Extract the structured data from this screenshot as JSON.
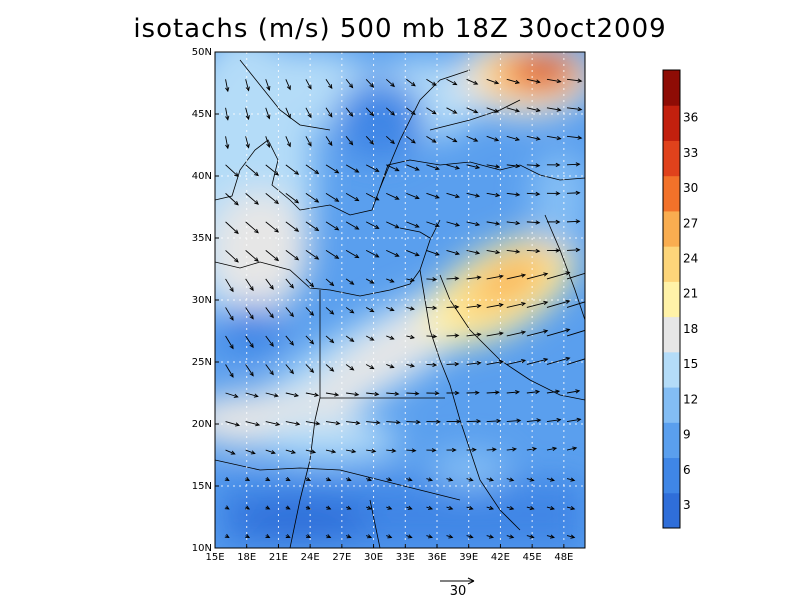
{
  "title": "isotachs (m/s) 500 mb 18Z 30oct2009",
  "map": {
    "lon_range": [
      15,
      50
    ],
    "lat_range": [
      10,
      50
    ],
    "lon_ticks": [
      "15E",
      "18E",
      "21E",
      "24E",
      "27E",
      "30E",
      "33E",
      "36E",
      "39E",
      "42E",
      "45E",
      "48E"
    ],
    "lat_ticks": [
      "10N",
      "15N",
      "20N",
      "25N",
      "30N",
      "35N",
      "40N",
      "45N",
      "50N"
    ],
    "grid_lines": "dotted"
  },
  "colorbar": {
    "labels": [
      "3",
      "6",
      "9",
      "12",
      "15",
      "18",
      "21",
      "24",
      "27",
      "30",
      "33",
      "36"
    ],
    "colors": [
      "#2f6ed9",
      "#3f86e6",
      "#5a9fee",
      "#83bdf4",
      "#b4dcf8",
      "#e6e6e6",
      "#fff2a8",
      "#fdd57a",
      "#f9ad50",
      "#f2722a",
      "#e0421c",
      "#c2200e",
      "#8e0c05"
    ]
  },
  "reference_vector": {
    "label": "30",
    "unit_value": 30
  },
  "icons": [
    "vector-arrow-icon"
  ],
  "chart_data": {
    "type": "heatmap",
    "title": "isotachs (m/s) 500 mb 18Z 30oct2009",
    "x_label": "",
    "y_label": "",
    "xlim": [
      15,
      50
    ],
    "ylim": [
      10,
      50
    ],
    "levels": [
      3,
      6,
      9,
      12,
      15,
      18,
      21,
      24,
      27,
      30,
      33,
      36
    ],
    "wind_maxima": [
      {
        "lon": 45.5,
        "lat": 48.5,
        "speed": 34
      },
      {
        "lon": 42.0,
        "lat": 31.5,
        "speed": 28
      }
    ]
  }
}
